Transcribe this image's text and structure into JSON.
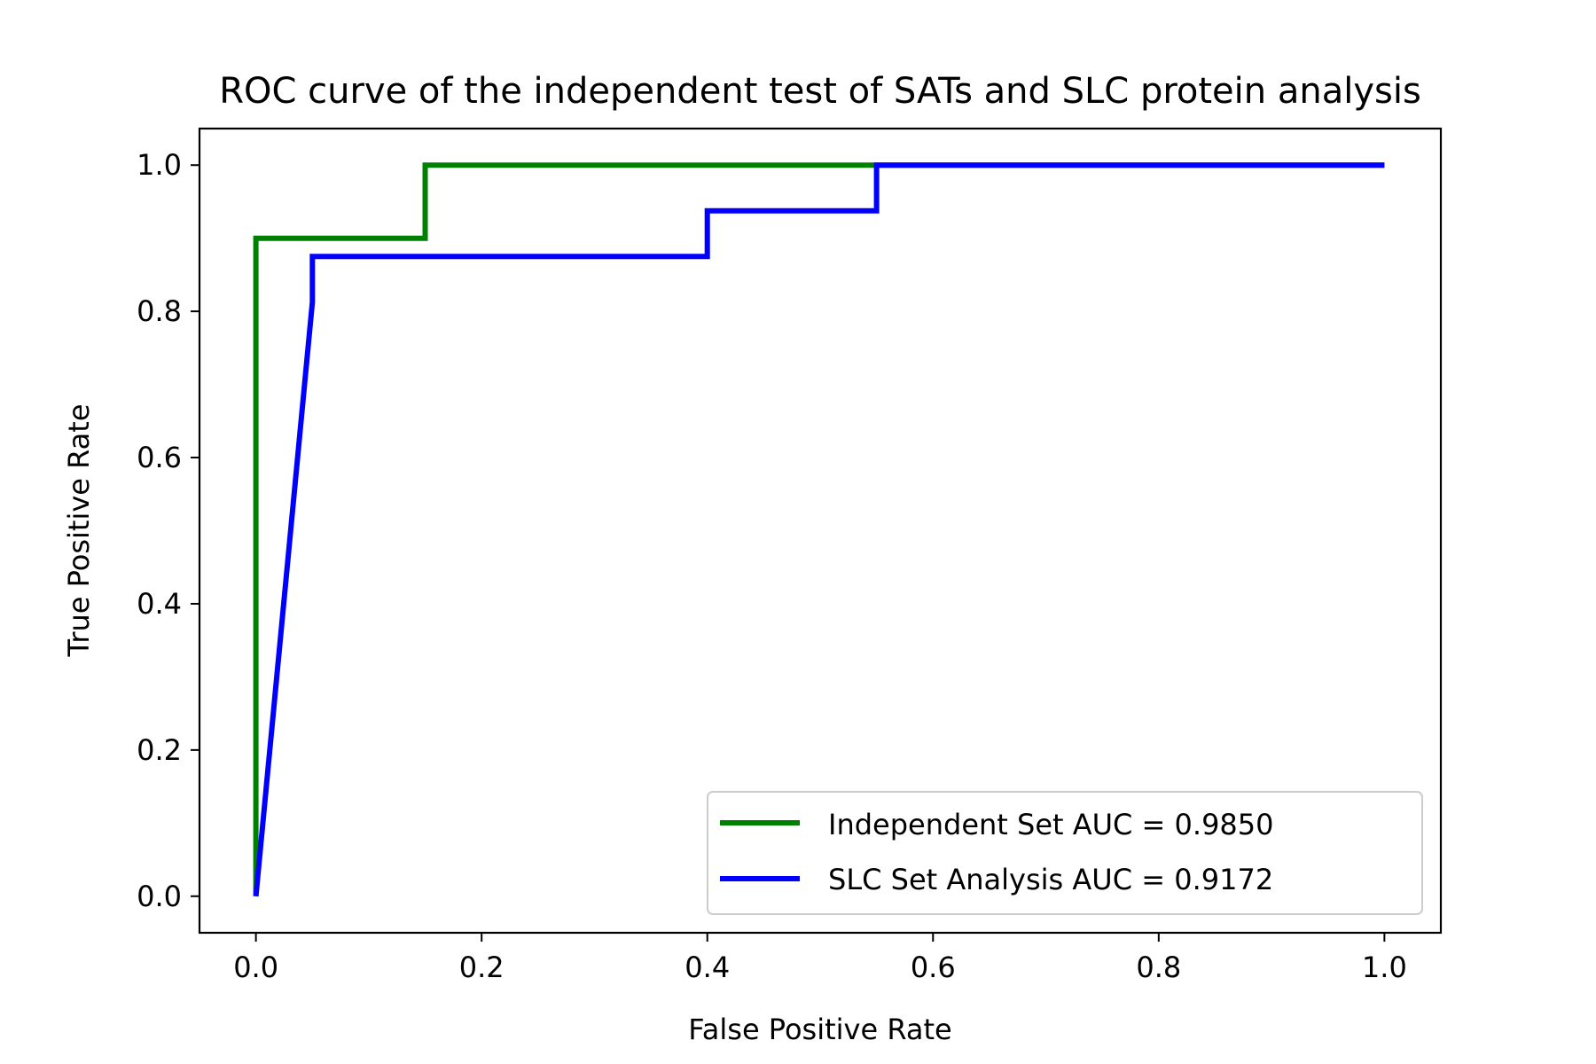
{
  "chart_data": {
    "type": "line",
    "title": "ROC curve of the independent test of SATs and SLC protein analysis",
    "xlabel": "False Positive Rate",
    "ylabel": "True Positive Rate",
    "xlim": [
      -0.05,
      1.05
    ],
    "ylim": [
      -0.05,
      1.05
    ],
    "xticks": [
      0.0,
      0.2,
      0.4,
      0.6,
      0.8,
      1.0
    ],
    "xtick_labels": [
      "0.0",
      "0.2",
      "0.4",
      "0.6",
      "0.8",
      "1.0"
    ],
    "yticks": [
      0.0,
      0.2,
      0.4,
      0.6,
      0.8,
      1.0
    ],
    "ytick_labels": [
      "0.0",
      "0.2",
      "0.4",
      "0.6",
      "0.8",
      "1.0"
    ],
    "grid": false,
    "legend_position": "lower-right",
    "series": [
      {
        "name": "Independent Set AUC = 0.9850",
        "color": "#008000",
        "x": [
          0.0,
          0.0,
          0.0,
          0.15,
          0.15,
          1.0
        ],
        "y": [
          0.0,
          0.9,
          0.9,
          0.9,
          1.0,
          1.0
        ]
      },
      {
        "name": "SLC Set Analysis AUC = 0.9172",
        "color": "#0000ff",
        "x": [
          0.0,
          0.05,
          0.05,
          0.4,
          0.4,
          0.55,
          0.55,
          1.0
        ],
        "y": [
          0.0,
          0.8125,
          0.875,
          0.875,
          0.9375,
          0.9375,
          1.0,
          1.0
        ]
      }
    ]
  }
}
